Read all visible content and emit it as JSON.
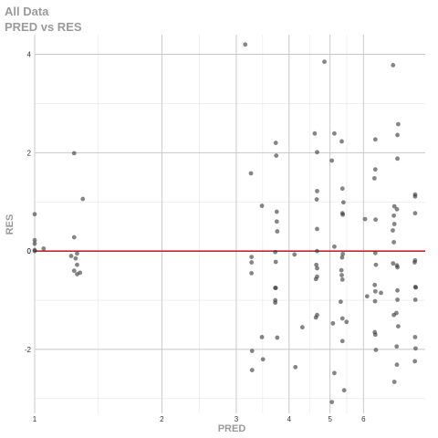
{
  "chart_data": {
    "type": "scatter",
    "title": "All Data",
    "subtitle": "PRED vs RES",
    "xlabel": "PRED",
    "ylabel": "RES",
    "x_scale": "log",
    "xlim": [
      1.0,
      8.4
    ],
    "ylim": [
      -3.3,
      4.4
    ],
    "x_ticks": [
      "1",
      "2",
      "3",
      "4",
      "5",
      "6"
    ],
    "y_ticks": [
      "-2",
      "0",
      "2",
      "4"
    ],
    "grid": true,
    "reference_line": {
      "y": 0,
      "color": "#e31a1c"
    },
    "colors": {
      "points": "#333333",
      "grid_major": "#c8c8c8",
      "grid_minor": "#e5e5e5",
      "zero_line": "#e31a1c"
    },
    "points": [
      {
        "x": 1.0,
        "y": 0.75
      },
      {
        "x": 1.0,
        "y": 0.22
      },
      {
        "x": 1.0,
        "y": 0.15
      },
      {
        "x": 1.0,
        "y": 0.02
      },
      {
        "x": 1.0,
        "y": 0.0
      },
      {
        "x": 1.05,
        "y": 0.05
      },
      {
        "x": 1.22,
        "y": -0.1
      },
      {
        "x": 1.24,
        "y": 1.99
      },
      {
        "x": 1.24,
        "y": 0.28
      },
      {
        "x": 1.24,
        "y": -0.4
      },
      {
        "x": 1.25,
        "y": -0.15
      },
      {
        "x": 1.26,
        "y": -0.05
      },
      {
        "x": 1.26,
        "y": -0.28
      },
      {
        "x": 1.26,
        "y": -0.47
      },
      {
        "x": 1.28,
        "y": -0.44
      },
      {
        "x": 1.3,
        "y": 1.06
      },
      {
        "x": 3.15,
        "y": 4.2
      },
      {
        "x": 3.25,
        "y": 1.58
      },
      {
        "x": 3.26,
        "y": -0.12
      },
      {
        "x": 3.26,
        "y": -0.23
      },
      {
        "x": 3.26,
        "y": -0.45
      },
      {
        "x": 3.27,
        "y": -2.03
      },
      {
        "x": 3.27,
        "y": -2.42
      },
      {
        "x": 3.45,
        "y": 0.92
      },
      {
        "x": 3.45,
        "y": -1.75
      },
      {
        "x": 3.47,
        "y": -2.2
      },
      {
        "x": 3.72,
        "y": 2.2
      },
      {
        "x": 3.73,
        "y": 1.94
      },
      {
        "x": 3.74,
        "y": 0.8
      },
      {
        "x": 3.74,
        "y": 0.6
      },
      {
        "x": 3.75,
        "y": 0.4
      },
      {
        "x": 3.71,
        "y": -0.02
      },
      {
        "x": 3.72,
        "y": -0.22
      },
      {
        "x": 3.71,
        "y": -0.75
      },
      {
        "x": 3.72,
        "y": -0.75
      },
      {
        "x": 3.71,
        "y": -1.0
      },
      {
        "x": 3.71,
        "y": -1.05
      },
      {
        "x": 3.75,
        "y": -1.76
      },
      {
        "x": 4.12,
        "y": -0.07
      },
      {
        "x": 4.14,
        "y": -2.36
      },
      {
        "x": 4.3,
        "y": -1.55
      },
      {
        "x": 4.6,
        "y": 2.39
      },
      {
        "x": 4.66,
        "y": 2.01
      },
      {
        "x": 4.66,
        "y": 1.22
      },
      {
        "x": 4.65,
        "y": 1.05
      },
      {
        "x": 4.66,
        "y": 0.45
      },
      {
        "x": 4.66,
        "y": 0.0
      },
      {
        "x": 4.64,
        "y": -0.28
      },
      {
        "x": 4.66,
        "y": -0.35
      },
      {
        "x": 4.66,
        "y": -0.52
      },
      {
        "x": 4.63,
        "y": -0.57
      },
      {
        "x": 4.63,
        "y": -1.35
      },
      {
        "x": 4.66,
        "y": -1.3
      },
      {
        "x": 4.85,
        "y": 3.85
      },
      {
        "x": 5.05,
        "y": 1.84
      },
      {
        "x": 5.05,
        "y": -3.07
      },
      {
        "x": 5.08,
        "y": -1.47
      },
      {
        "x": 5.12,
        "y": 2.39
      },
      {
        "x": 5.12,
        "y": 0.09
      },
      {
        "x": 5.12,
        "y": -2.48
      },
      {
        "x": 5.33,
        "y": 2.23
      },
      {
        "x": 5.35,
        "y": 1.27
      },
      {
        "x": 5.38,
        "y": 0.99
      },
      {
        "x": 5.35,
        "y": 0.77
      },
      {
        "x": 5.36,
        "y": 0.74
      },
      {
        "x": 5.36,
        "y": -0.06
      },
      {
        "x": 5.34,
        "y": -0.13
      },
      {
        "x": 5.32,
        "y": -0.39
      },
      {
        "x": 5.33,
        "y": -0.49
      },
      {
        "x": 5.35,
        "y": -0.58
      },
      {
        "x": 5.3,
        "y": -1.03
      },
      {
        "x": 5.35,
        "y": -1.37
      },
      {
        "x": 5.35,
        "y": -1.83
      },
      {
        "x": 5.4,
        "y": -2.83
      },
      {
        "x": 5.47,
        "y": -1.44
      },
      {
        "x": 6.05,
        "y": 0.65
      },
      {
        "x": 6.12,
        "y": -0.92
      },
      {
        "x": 6.4,
        "y": 2.27
      },
      {
        "x": 6.4,
        "y": 1.66
      },
      {
        "x": 6.37,
        "y": 1.48
      },
      {
        "x": 6.41,
        "y": 0.64
      },
      {
        "x": 6.4,
        "y": -0.04
      },
      {
        "x": 6.42,
        "y": -0.28
      },
      {
        "x": 6.38,
        "y": -0.69
      },
      {
        "x": 6.4,
        "y": -0.82
      },
      {
        "x": 6.39,
        "y": -1.02
      },
      {
        "x": 6.38,
        "y": -1.65
      },
      {
        "x": 6.4,
        "y": -1.7
      },
      {
        "x": 6.42,
        "y": -2.01
      },
      {
        "x": 6.6,
        "y": -0.85
      },
      {
        "x": 7.05,
        "y": 3.78
      },
      {
        "x": 7.04,
        "y": 0.42
      },
      {
        "x": 7.08,
        "y": 0.18
      },
      {
        "x": 7.1,
        "y": 0.91
      },
      {
        "x": 7.08,
        "y": 0.72
      },
      {
        "x": 7.1,
        "y": 0.55
      },
      {
        "x": 7.05,
        "y": -0.25
      },
      {
        "x": 7.08,
        "y": -1.3
      },
      {
        "x": 7.1,
        "y": -2.66
      },
      {
        "x": 7.25,
        "y": 2.58
      },
      {
        "x": 7.22,
        "y": 2.36
      },
      {
        "x": 7.22,
        "y": 1.88
      },
      {
        "x": 7.2,
        "y": 0.85
      },
      {
        "x": 7.2,
        "y": -0.29
      },
      {
        "x": 7.22,
        "y": -0.33
      },
      {
        "x": 7.22,
        "y": -0.8
      },
      {
        "x": 7.22,
        "y": -0.99
      },
      {
        "x": 7.18,
        "y": -1.26
      },
      {
        "x": 7.25,
        "y": -1.53
      },
      {
        "x": 7.19,
        "y": -1.94
      },
      {
        "x": 7.2,
        "y": -2.31
      },
      {
        "x": 7.95,
        "y": 1.15
      },
      {
        "x": 7.95,
        "y": 1.11
      },
      {
        "x": 7.95,
        "y": 0.77
      },
      {
        "x": 7.95,
        "y": -0.19
      },
      {
        "x": 7.93,
        "y": -0.23
      },
      {
        "x": 7.96,
        "y": -0.73
      },
      {
        "x": 7.98,
        "y": -0.74
      },
      {
        "x": 7.96,
        "y": -0.99
      },
      {
        "x": 7.95,
        "y": -1.75
      },
      {
        "x": 7.97,
        "y": -1.98
      },
      {
        "x": 7.94,
        "y": -2.24
      }
    ]
  }
}
